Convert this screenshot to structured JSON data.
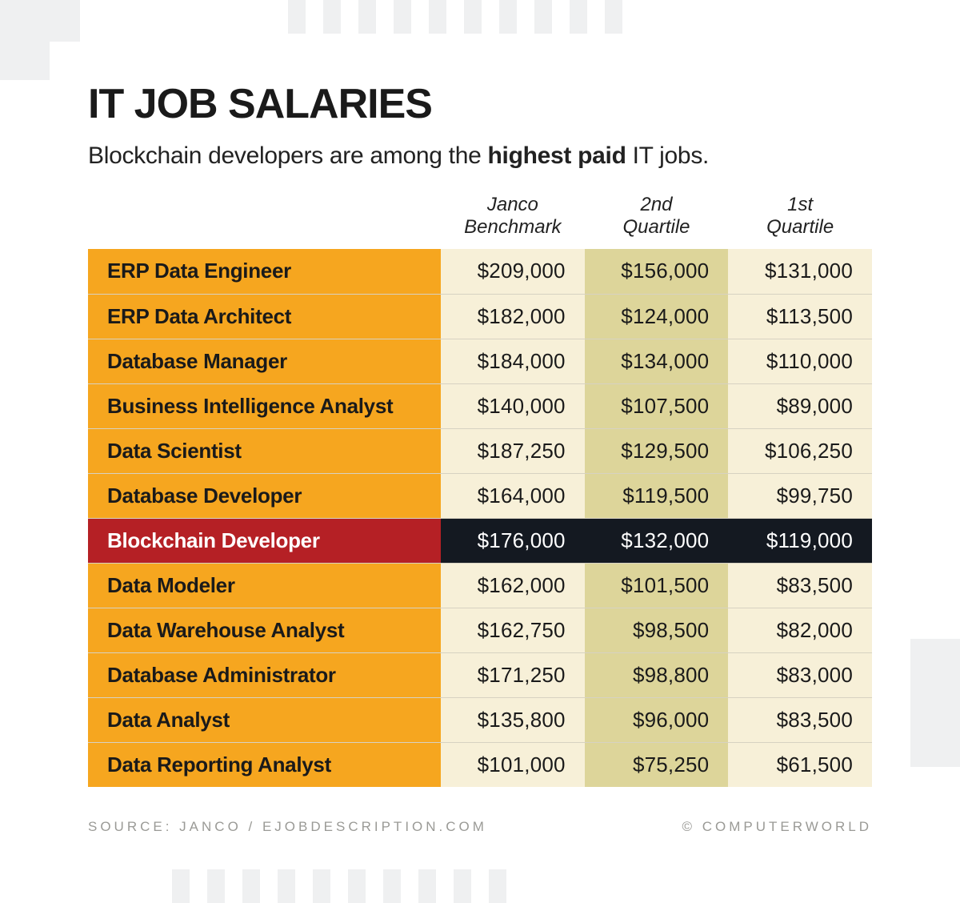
{
  "title": "IT JOB SALARIES",
  "subtitle_pre": "Blockchain developers are among the ",
  "subtitle_strong": "highest paid",
  "subtitle_post": " IT jobs.",
  "columns": [
    {
      "line1": "Janco",
      "line2": "Benchmark"
    },
    {
      "line1": "2nd",
      "line2": "Quartile"
    },
    {
      "line1": "1st",
      "line2": "Quartile"
    }
  ],
  "colors": {
    "label_bg": "#f6a61f",
    "col_benchmark_bg": "#f7f0d8",
    "col_q2_bg": "#ddd59a",
    "col_q1_bg": "#f7f0d8",
    "row_border": "#d7d2c2",
    "highlight_label_bg": "#b52025",
    "highlight_val_bg": "#141921",
    "highlight_text": "#ffffff",
    "text": "#1a1a1a",
    "footer_text": "#9a9a96",
    "deco": "#eff0f1"
  },
  "rows": [
    {
      "label": "ERP Data Engineer",
      "benchmark": "$209,000",
      "q2": "$156,000",
      "q1": "$131,000",
      "highlight": false
    },
    {
      "label": "ERP Data Architect",
      "benchmark": "$182,000",
      "q2": "$124,000",
      "q1": "$113,500",
      "highlight": false
    },
    {
      "label": "Database Manager",
      "benchmark": "$184,000",
      "q2": "$134,000",
      "q1": "$110,000",
      "highlight": false
    },
    {
      "label": "Business Intelligence Analyst",
      "benchmark": "$140,000",
      "q2": "$107,500",
      "q1": "$89,000",
      "highlight": false
    },
    {
      "label": "Data Scientist",
      "benchmark": "$187,250",
      "q2": "$129,500",
      "q1": "$106,250",
      "highlight": false
    },
    {
      "label": "Database Developer",
      "benchmark": "$164,000",
      "q2": "$119,500",
      "q1": "$99,750",
      "highlight": false
    },
    {
      "label": "Blockchain Developer",
      "benchmark": "$176,000",
      "q2": "$132,000",
      "q1": "$119,000",
      "highlight": true
    },
    {
      "label": "Data Modeler",
      "benchmark": "$162,000",
      "q2": "$101,500",
      "q1": "$83,500",
      "highlight": false
    },
    {
      "label": "Data Warehouse Analyst",
      "benchmark": "$162,750",
      "q2": "$98,500",
      "q1": "$82,000",
      "highlight": false
    },
    {
      "label": "Database Administrator",
      "benchmark": "$171,250",
      "q2": "$98,800",
      "q1": "$83,000",
      "highlight": false
    },
    {
      "label": "Data Analyst",
      "benchmark": "$135,800",
      "q2": "$96,000",
      "q1": "$83,500",
      "highlight": false
    },
    {
      "label": "Data Reporting Analyst",
      "benchmark": "$101,000",
      "q2": "$75,250",
      "q1": "$61,500",
      "highlight": false
    }
  ],
  "source": "SOURCE: JANCO / EJOBDESCRIPTION.COM",
  "copyright": "© COMPUTERWORLD"
}
